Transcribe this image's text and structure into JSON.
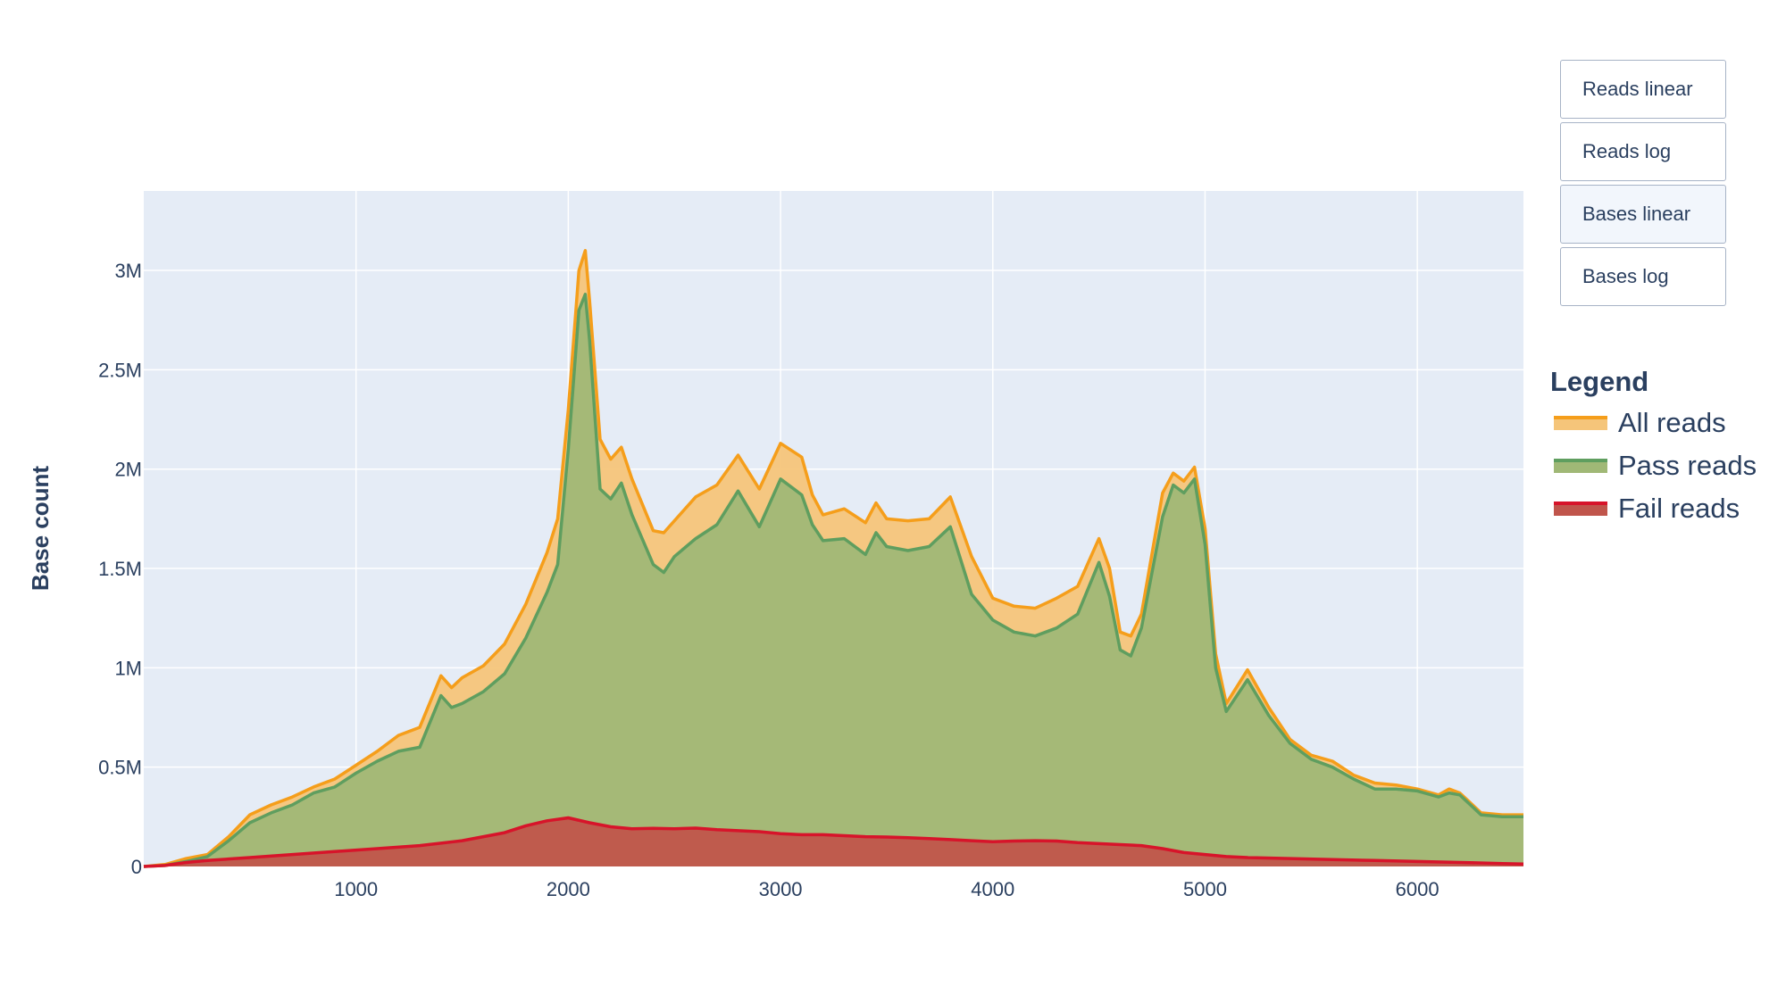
{
  "chart_data": {
    "type": "area",
    "title": "",
    "xlabel": "",
    "ylabel": "Base count",
    "xlim": [
      0,
      6500
    ],
    "ylim": [
      0,
      3400000
    ],
    "x_ticks": [
      1000,
      2000,
      3000,
      4000,
      5000,
      6000
    ],
    "x_tick_labels": [
      "1000",
      "2000",
      "3000",
      "4000",
      "5000",
      "6000"
    ],
    "y_ticks": [
      0,
      500000,
      1000000,
      1500000,
      2000000,
      2500000,
      3000000
    ],
    "y_tick_labels": [
      "0",
      "0.5M",
      "1M",
      "1.5M",
      "2M",
      "2.5M",
      "3M"
    ],
    "grid": true,
    "legend_title": "Legend",
    "legend_position": "right",
    "series": [
      {
        "name": "All reads",
        "line_color": "#f59e1b",
        "fill_color": "#f5c57a",
        "points": [
          [
            0,
            0
          ],
          [
            100,
            10000
          ],
          [
            200,
            40000
          ],
          [
            300,
            60000
          ],
          [
            400,
            150000
          ],
          [
            500,
            260000
          ],
          [
            600,
            310000
          ],
          [
            700,
            350000
          ],
          [
            800,
            400000
          ],
          [
            900,
            440000
          ],
          [
            1000,
            510000
          ],
          [
            1100,
            580000
          ],
          [
            1200,
            660000
          ],
          [
            1300,
            700000
          ],
          [
            1400,
            960000
          ],
          [
            1450,
            900000
          ],
          [
            1500,
            950000
          ],
          [
            1600,
            1010000
          ],
          [
            1700,
            1120000
          ],
          [
            1800,
            1320000
          ],
          [
            1900,
            1580000
          ],
          [
            1950,
            1750000
          ],
          [
            2000,
            2300000
          ],
          [
            2050,
            3000000
          ],
          [
            2080,
            3100000
          ],
          [
            2100,
            2850000
          ],
          [
            2150,
            2150000
          ],
          [
            2200,
            2050000
          ],
          [
            2250,
            2110000
          ],
          [
            2300,
            1950000
          ],
          [
            2400,
            1690000
          ],
          [
            2450,
            1680000
          ],
          [
            2500,
            1740000
          ],
          [
            2600,
            1860000
          ],
          [
            2700,
            1920000
          ],
          [
            2800,
            2070000
          ],
          [
            2900,
            1900000
          ],
          [
            3000,
            2130000
          ],
          [
            3100,
            2060000
          ],
          [
            3150,
            1870000
          ],
          [
            3200,
            1770000
          ],
          [
            3300,
            1800000
          ],
          [
            3400,
            1730000
          ],
          [
            3450,
            1830000
          ],
          [
            3500,
            1750000
          ],
          [
            3600,
            1740000
          ],
          [
            3700,
            1750000
          ],
          [
            3800,
            1860000
          ],
          [
            3900,
            1560000
          ],
          [
            4000,
            1350000
          ],
          [
            4100,
            1310000
          ],
          [
            4200,
            1300000
          ],
          [
            4300,
            1350000
          ],
          [
            4400,
            1410000
          ],
          [
            4500,
            1650000
          ],
          [
            4550,
            1500000
          ],
          [
            4600,
            1180000
          ],
          [
            4650,
            1160000
          ],
          [
            4700,
            1270000
          ],
          [
            4800,
            1880000
          ],
          [
            4850,
            1980000
          ],
          [
            4900,
            1940000
          ],
          [
            4950,
            2010000
          ],
          [
            5000,
            1700000
          ],
          [
            5050,
            1070000
          ],
          [
            5100,
            820000
          ],
          [
            5200,
            990000
          ],
          [
            5300,
            800000
          ],
          [
            5400,
            640000
          ],
          [
            5500,
            560000
          ],
          [
            5600,
            530000
          ],
          [
            5700,
            460000
          ],
          [
            5800,
            420000
          ],
          [
            5900,
            410000
          ],
          [
            6000,
            390000
          ],
          [
            6100,
            360000
          ],
          [
            6150,
            390000
          ],
          [
            6200,
            370000
          ],
          [
            6300,
            270000
          ],
          [
            6400,
            260000
          ],
          [
            6500,
            260000
          ]
        ]
      },
      {
        "name": "Pass reads",
        "line_color": "#5f9e5f",
        "fill_color": "#a0b876",
        "points": [
          [
            0,
            0
          ],
          [
            100,
            5000
          ],
          [
            200,
            25000
          ],
          [
            300,
            50000
          ],
          [
            400,
            130000
          ],
          [
            500,
            220000
          ],
          [
            600,
            270000
          ],
          [
            700,
            310000
          ],
          [
            800,
            370000
          ],
          [
            900,
            400000
          ],
          [
            1000,
            470000
          ],
          [
            1100,
            530000
          ],
          [
            1200,
            580000
          ],
          [
            1300,
            600000
          ],
          [
            1400,
            860000
          ],
          [
            1450,
            800000
          ],
          [
            1500,
            820000
          ],
          [
            1600,
            880000
          ],
          [
            1700,
            970000
          ],
          [
            1800,
            1150000
          ],
          [
            1900,
            1380000
          ],
          [
            1950,
            1520000
          ],
          [
            2000,
            2100000
          ],
          [
            2050,
            2800000
          ],
          [
            2080,
            2880000
          ],
          [
            2100,
            2650000
          ],
          [
            2150,
            1900000
          ],
          [
            2200,
            1850000
          ],
          [
            2250,
            1930000
          ],
          [
            2300,
            1770000
          ],
          [
            2400,
            1520000
          ],
          [
            2450,
            1480000
          ],
          [
            2500,
            1560000
          ],
          [
            2600,
            1650000
          ],
          [
            2700,
            1720000
          ],
          [
            2800,
            1890000
          ],
          [
            2900,
            1710000
          ],
          [
            3000,
            1950000
          ],
          [
            3100,
            1870000
          ],
          [
            3150,
            1720000
          ],
          [
            3200,
            1640000
          ],
          [
            3300,
            1650000
          ],
          [
            3400,
            1570000
          ],
          [
            3450,
            1680000
          ],
          [
            3500,
            1610000
          ],
          [
            3600,
            1590000
          ],
          [
            3700,
            1610000
          ],
          [
            3800,
            1710000
          ],
          [
            3900,
            1370000
          ],
          [
            4000,
            1240000
          ],
          [
            4100,
            1180000
          ],
          [
            4200,
            1160000
          ],
          [
            4300,
            1200000
          ],
          [
            4400,
            1270000
          ],
          [
            4500,
            1530000
          ],
          [
            4550,
            1360000
          ],
          [
            4600,
            1090000
          ],
          [
            4650,
            1060000
          ],
          [
            4700,
            1200000
          ],
          [
            4800,
            1760000
          ],
          [
            4850,
            1920000
          ],
          [
            4900,
            1880000
          ],
          [
            4950,
            1950000
          ],
          [
            5000,
            1620000
          ],
          [
            5050,
            1000000
          ],
          [
            5100,
            780000
          ],
          [
            5200,
            940000
          ],
          [
            5300,
            760000
          ],
          [
            5400,
            620000
          ],
          [
            5500,
            540000
          ],
          [
            5600,
            500000
          ],
          [
            5700,
            440000
          ],
          [
            5800,
            390000
          ],
          [
            5900,
            390000
          ],
          [
            6000,
            380000
          ],
          [
            6100,
            350000
          ],
          [
            6150,
            370000
          ],
          [
            6200,
            360000
          ],
          [
            6300,
            260000
          ],
          [
            6400,
            250000
          ],
          [
            6500,
            250000
          ]
        ]
      },
      {
        "name": "Fail reads",
        "line_color": "#d7142a",
        "fill_color": "#c0554b",
        "points": [
          [
            0,
            0
          ],
          [
            100,
            5000
          ],
          [
            200,
            20000
          ],
          [
            300,
            30000
          ],
          [
            500,
            45000
          ],
          [
            700,
            60000
          ],
          [
            900,
            75000
          ],
          [
            1100,
            90000
          ],
          [
            1300,
            105000
          ],
          [
            1500,
            130000
          ],
          [
            1700,
            170000
          ],
          [
            1800,
            205000
          ],
          [
            1900,
            230000
          ],
          [
            2000,
            245000
          ],
          [
            2100,
            220000
          ],
          [
            2200,
            200000
          ],
          [
            2300,
            190000
          ],
          [
            2400,
            192000
          ],
          [
            2500,
            190000
          ],
          [
            2600,
            193000
          ],
          [
            2700,
            185000
          ],
          [
            2800,
            180000
          ],
          [
            2900,
            175000
          ],
          [
            3000,
            165000
          ],
          [
            3100,
            160000
          ],
          [
            3200,
            160000
          ],
          [
            3300,
            155000
          ],
          [
            3400,
            150000
          ],
          [
            3500,
            148000
          ],
          [
            3600,
            145000
          ],
          [
            3700,
            140000
          ],
          [
            3800,
            135000
          ],
          [
            3900,
            130000
          ],
          [
            4000,
            125000
          ],
          [
            4100,
            128000
          ],
          [
            4200,
            130000
          ],
          [
            4300,
            128000
          ],
          [
            4400,
            120000
          ],
          [
            4500,
            115000
          ],
          [
            4600,
            110000
          ],
          [
            4700,
            105000
          ],
          [
            4800,
            90000
          ],
          [
            4900,
            70000
          ],
          [
            5000,
            60000
          ],
          [
            5100,
            50000
          ],
          [
            5200,
            45000
          ],
          [
            5400,
            40000
          ],
          [
            5600,
            35000
          ],
          [
            5800,
            30000
          ],
          [
            6000,
            25000
          ],
          [
            6200,
            20000
          ],
          [
            6400,
            15000
          ],
          [
            6500,
            12000
          ]
        ]
      }
    ]
  },
  "buttons": [
    {
      "label": "Reads linear",
      "active": false
    },
    {
      "label": "Reads log",
      "active": false
    },
    {
      "label": "Bases linear",
      "active": true
    },
    {
      "label": "Bases log",
      "active": false
    }
  ],
  "colors": {
    "plot_bg": "#e5ecf6",
    "grid": "#ffffff",
    "text": "#2a3f5f"
  }
}
